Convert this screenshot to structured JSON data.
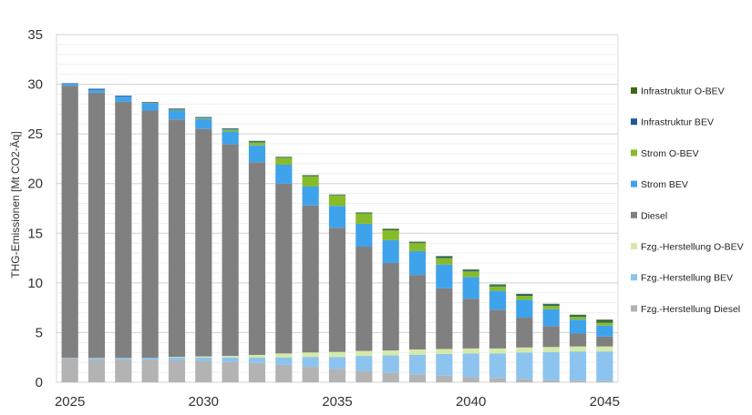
{
  "chart_data": {
    "type": "bar",
    "stacked": true,
    "title": "",
    "xlabel": "",
    "ylabel": "THG-Emissionen [Mt CO2-Äq]",
    "ylim": [
      0,
      35
    ],
    "yticks": [
      0,
      5,
      10,
      15,
      20,
      25,
      30,
      35
    ],
    "xtick_labels": [
      "2025",
      "2030",
      "2035",
      "2040",
      "2045"
    ],
    "grid": true,
    "legend_position": "right",
    "categories": [
      2025,
      2026,
      2027,
      2028,
      2029,
      2030,
      2031,
      2032,
      2033,
      2034,
      2035,
      2036,
      2037,
      2038,
      2039,
      2040,
      2041,
      2042,
      2043,
      2044,
      2045
    ],
    "series": [
      {
        "name": "Fzg.-Herstellung Diesel",
        "color": "#b3b3b3",
        "values": [
          2.4,
          2.35,
          2.3,
          2.25,
          2.2,
          2.15,
          2.05,
          1.95,
          1.75,
          1.55,
          1.35,
          1.15,
          0.95,
          0.8,
          0.65,
          0.5,
          0.4,
          0.3,
          0.2,
          0.15,
          0.1
        ]
      },
      {
        "name": "Fzg.-Herstellung  BEV",
        "color": "#8cc4ef",
        "values": [
          0.05,
          0.1,
          0.15,
          0.2,
          0.3,
          0.35,
          0.45,
          0.55,
          0.75,
          1.0,
          1.2,
          1.5,
          1.75,
          1.95,
          2.2,
          2.4,
          2.5,
          2.7,
          2.85,
          2.95,
          3.0
        ]
      },
      {
        "name": "Fzg.-Herstellung O-BEV",
        "color": "#d4eaa8",
        "values": [
          0,
          0,
          0,
          0,
          0.05,
          0.1,
          0.15,
          0.25,
          0.4,
          0.45,
          0.5,
          0.5,
          0.5,
          0.55,
          0.5,
          0.5,
          0.5,
          0.5,
          0.5,
          0.5,
          0.5
        ]
      },
      {
        "name": "Diesel",
        "color": "#808080",
        "values": [
          27.4,
          26.7,
          25.8,
          24.9,
          23.9,
          22.9,
          21.3,
          19.4,
          17.1,
          14.8,
          12.5,
          10.5,
          8.8,
          7.5,
          6.1,
          5.0,
          3.9,
          3.0,
          2.1,
          1.3,
          1.0
        ]
      },
      {
        "name": "Strom BEV",
        "color": "#3fa3ec",
        "values": [
          0.2,
          0.3,
          0.5,
          0.7,
          0.9,
          1.0,
          1.3,
          1.7,
          1.9,
          1.9,
          2.2,
          2.3,
          2.3,
          2.4,
          2.4,
          2.2,
          1.9,
          1.8,
          1.7,
          1.4,
          1.1
        ]
      },
      {
        "name": "Strom O-BEV",
        "color": "#88bb2a",
        "values": [
          0,
          0,
          0,
          0.05,
          0.1,
          0.1,
          0.2,
          0.3,
          0.7,
          1.05,
          1.05,
          1.05,
          1.0,
          0.8,
          0.65,
          0.55,
          0.45,
          0.4,
          0.35,
          0.3,
          0.3
        ]
      },
      {
        "name": "Infrastruktur BEV",
        "color": "#1e5a9a",
        "values": [
          0.05,
          0.1,
          0.1,
          0.1,
          0.1,
          0.1,
          0.1,
          0.1,
          0.05,
          0.05,
          0.05,
          0.05,
          0.05,
          0.05,
          0.1,
          0.1,
          0.1,
          0.1,
          0.1,
          0.1,
          0.1
        ]
      },
      {
        "name": "Infrastruktur O-BEV",
        "color": "#3d6b15",
        "values": [
          0,
          0,
          0,
          0,
          0,
          0,
          0,
          0.05,
          0.05,
          0.05,
          0.05,
          0.05,
          0.1,
          0.1,
          0.1,
          0.1,
          0.1,
          0.1,
          0.1,
          0.1,
          0.2
        ]
      }
    ],
    "legend_order": [
      "Infrastruktur O-BEV",
      "Infrastruktur BEV",
      "Strom O-BEV",
      "Strom BEV",
      "Diesel",
      "Fzg.-Herstellung O-BEV",
      "Fzg.-Herstellung  BEV",
      "Fzg.-Herstellung Diesel"
    ]
  }
}
